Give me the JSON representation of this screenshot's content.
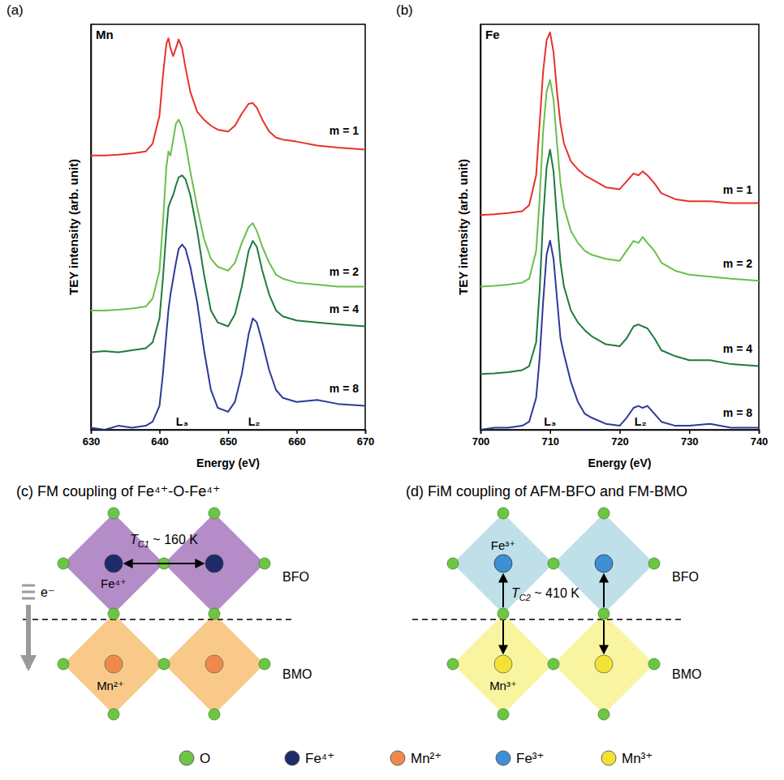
{
  "chart_data": [
    {
      "type": "line",
      "panel": "(a)",
      "title": "Mn",
      "x_label": "Energy (eV)",
      "y_label": "TEY intensity (arb. unit)",
      "xlim": [
        630,
        670
      ],
      "xticks": [
        630,
        640,
        650,
        660,
        670
      ],
      "ylim": [
        0,
        10.2
      ],
      "yticks": [],
      "tick_labels": "x",
      "x": [
        630,
        632,
        634,
        636,
        638,
        639,
        640,
        640.5,
        641,
        641.3,
        641.6,
        642,
        642.4,
        642.8,
        643.3,
        643.8,
        644.5,
        645.5,
        646.5,
        647.5,
        648.5,
        650,
        651,
        652,
        653,
        653.6,
        654.2,
        655,
        656,
        657,
        658,
        660,
        663,
        666,
        670
      ],
      "series": [
        {
          "name": "m = 1",
          "color": "#e8312b",
          "values": [
            6.9,
            6.9,
            6.92,
            6.95,
            7.0,
            7.2,
            7.9,
            8.9,
            9.7,
            9.85,
            9.6,
            9.4,
            9.6,
            9.82,
            9.6,
            9.1,
            8.5,
            8.0,
            7.8,
            7.65,
            7.55,
            7.5,
            7.65,
            7.95,
            8.2,
            8.22,
            8.1,
            7.8,
            7.5,
            7.35,
            7.3,
            7.25,
            7.15,
            7.1,
            7.05
          ]
        },
        {
          "name": "m = 2",
          "color": "#6abf4b",
          "values": [
            3.0,
            3.0,
            3.02,
            3.05,
            3.1,
            3.3,
            4.0,
            5.2,
            6.6,
            7.0,
            6.9,
            7.3,
            7.7,
            7.8,
            7.6,
            7.2,
            6.5,
            5.6,
            4.8,
            4.3,
            4.1,
            4.0,
            4.2,
            4.7,
            5.1,
            5.2,
            5.0,
            4.6,
            4.2,
            3.9,
            3.8,
            3.7,
            3.65,
            3.6,
            3.6
          ]
        },
        {
          "name": "m = 4",
          "color": "#1e7b3c",
          "values": [
            1.95,
            1.98,
            1.95,
            2.0,
            2.05,
            2.2,
            2.8,
            3.8,
            5.0,
            5.6,
            5.75,
            5.9,
            6.15,
            6.35,
            6.4,
            6.3,
            5.9,
            5.0,
            3.9,
            3.0,
            2.7,
            2.6,
            2.9,
            3.6,
            4.5,
            4.75,
            4.6,
            4.0,
            3.4,
            3.0,
            2.85,
            2.75,
            2.7,
            2.65,
            2.6
          ]
        },
        {
          "name": "m = 8",
          "color": "#2e3a97",
          "values": [
            0.05,
            0.0,
            0.1,
            0.05,
            0.1,
            0.2,
            0.6,
            1.4,
            2.4,
            3.0,
            3.4,
            3.8,
            4.2,
            4.55,
            4.66,
            4.55,
            4.1,
            3.2,
            2.0,
            1.0,
            0.55,
            0.45,
            0.7,
            1.4,
            2.4,
            2.8,
            2.7,
            2.2,
            1.5,
            1.0,
            0.8,
            0.7,
            0.75,
            0.65,
            0.6
          ]
        }
      ],
      "annotations": [
        {
          "text": "L₃",
          "x": 643.3
        },
        {
          "text": "L₂",
          "x": 653.8
        }
      ]
    },
    {
      "type": "line",
      "panel": "(b)",
      "title": "Fe",
      "x_label": "Energy (eV)",
      "y_label": "TEY intensity (arb. unit)",
      "xlim": [
        700,
        740
      ],
      "xticks": [
        700,
        710,
        720,
        730,
        740
      ],
      "ylim": [
        0,
        10.2
      ],
      "yticks": [],
      "tick_labels": "x",
      "x": [
        700,
        702,
        704,
        706,
        707,
        708,
        708.5,
        709,
        709.5,
        710,
        710.5,
        711,
        711.5,
        712,
        713,
        714,
        715,
        716,
        718,
        720,
        721,
        722,
        722.7,
        723.3,
        724,
        725,
        726,
        728,
        730,
        733,
        736,
        740
      ],
      "series": [
        {
          "name": "m = 1",
          "color": "#e8312b",
          "values": [
            5.4,
            5.42,
            5.45,
            5.5,
            5.65,
            6.4,
            7.7,
            9.0,
            9.8,
            10.0,
            9.5,
            8.5,
            7.7,
            7.2,
            6.75,
            6.55,
            6.4,
            6.3,
            6.1,
            6.05,
            6.25,
            6.45,
            6.4,
            6.5,
            6.4,
            6.2,
            5.95,
            5.8,
            5.75,
            5.75,
            5.7,
            5.7
          ]
        },
        {
          "name": "m = 2",
          "color": "#6abf4b",
          "values": [
            3.6,
            3.62,
            3.65,
            3.7,
            3.8,
            4.5,
            5.8,
            7.5,
            8.5,
            8.8,
            8.3,
            7.2,
            6.2,
            5.6,
            5.0,
            4.7,
            4.5,
            4.4,
            4.3,
            4.25,
            4.5,
            4.75,
            4.7,
            4.85,
            4.7,
            4.5,
            4.2,
            4.0,
            3.9,
            3.85,
            3.8,
            3.75
          ]
        },
        {
          "name": "m = 4",
          "color": "#1e7b3c",
          "values": [
            1.4,
            1.42,
            1.45,
            1.5,
            1.6,
            2.2,
            3.5,
            5.3,
            6.6,
            7.05,
            6.5,
            5.3,
            4.2,
            3.6,
            3.0,
            2.7,
            2.5,
            2.35,
            2.15,
            2.1,
            2.3,
            2.6,
            2.65,
            2.6,
            2.55,
            2.3,
            2.0,
            1.85,
            1.75,
            1.75,
            1.65,
            1.6
          ]
        },
        {
          "name": "m = 8",
          "color": "#2e3a97",
          "values": [
            0.0,
            0.05,
            0.05,
            0.1,
            0.2,
            0.8,
            1.8,
            3.2,
            4.4,
            4.76,
            4.3,
            3.3,
            2.3,
            1.9,
            1.2,
            0.7,
            0.4,
            0.3,
            0.15,
            0.1,
            0.3,
            0.55,
            0.6,
            0.55,
            0.6,
            0.4,
            0.2,
            0.1,
            0.1,
            0.15,
            0.05,
            0.05
          ]
        }
      ],
      "annotations": [
        {
          "text": "L₃",
          "x": 710
        },
        {
          "text": "L₂",
          "x": 723
        }
      ]
    }
  ],
  "diagrams": {
    "c": {
      "title": "(c) FM coupling of Fe⁴⁺-O-Fe⁴⁺",
      "top_layer": "BFO",
      "bottom_layer": "BMO",
      "top_ion": "Fe⁴⁺",
      "bottom_ion": "Mn²⁺",
      "tc": {
        "symbol": "T",
        "sub": "C1",
        "text": " ~ 160 K"
      },
      "electron": "e⁻"
    },
    "d": {
      "title": "(d) FiM coupling of AFM-BFO and FM-BMO",
      "top_layer": "BFO",
      "bottom_layer": "BMO",
      "top_ion": "Fe³⁺",
      "bottom_ion": "Mn³⁺",
      "tc": {
        "symbol": "T",
        "sub": "C2",
        "text": " ~ 410 K"
      }
    },
    "legend": [
      {
        "label": "O",
        "color": "#6cc644"
      },
      {
        "label": "Fe⁴⁺",
        "color": "#1f2a6b"
      },
      {
        "label": "Mn²⁺",
        "color": "#f08a4b"
      },
      {
        "label": "Fe³⁺",
        "color": "#3d8fd6"
      },
      {
        "label": "Mn³⁺",
        "color": "#f2e233"
      }
    ]
  }
}
